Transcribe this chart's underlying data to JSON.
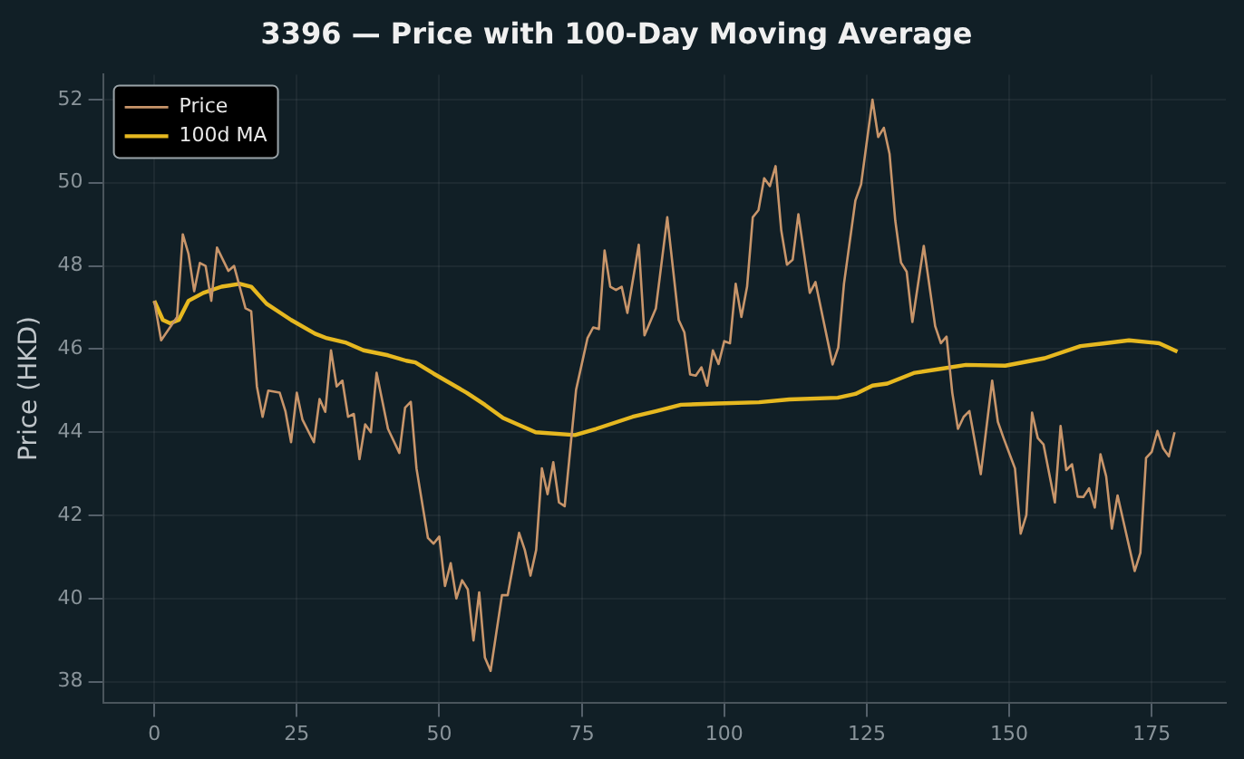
{
  "chart_data": {
    "type": "line",
    "title": "3396 — Price with 100-Day Moving Average",
    "ylabel": "Price (HKD)",
    "xlim": [
      -9,
      188
    ],
    "xticks": [
      0,
      25,
      50,
      75,
      100,
      125,
      150,
      175
    ],
    "ylim": [
      37.5,
      52.6
    ],
    "yticks": [
      38,
      40,
      42,
      44,
      46,
      48,
      50,
      52
    ],
    "grid": true,
    "legend": "top left",
    "line_style": "solid",
    "marker": "none",
    "series": [
      {
        "name": "Price",
        "color": "#c8956a",
        "x": [
          0,
          1.2,
          4,
          5,
          6,
          7,
          8,
          9,
          10,
          11,
          13,
          14,
          16,
          17,
          18,
          19,
          20,
          22,
          23,
          24,
          25,
          26,
          28,
          29,
          30,
          31,
          32,
          33,
          34,
          35,
          36,
          37,
          38,
          39,
          41,
          43,
          44,
          45,
          46,
          48,
          49,
          50,
          51,
          52,
          53,
          54,
          55,
          56,
          57,
          58,
          59,
          61,
          62,
          64,
          65,
          66,
          67,
          68,
          69,
          70,
          71,
          72,
          74,
          76,
          77,
          78,
          79,
          80,
          81,
          82,
          83,
          85,
          86,
          88,
          90,
          92,
          93,
          94,
          95,
          96,
          97,
          98,
          99,
          100,
          101,
          102,
          103,
          104,
          105,
          106,
          107,
          108,
          109,
          110,
          111,
          112,
          113,
          115,
          116,
          119,
          120,
          121,
          123,
          124,
          126,
          127,
          128,
          129,
          130,
          131,
          132,
          133,
          135,
          137,
          138,
          139,
          140,
          141,
          142,
          143,
          145,
          147,
          148,
          149,
          151,
          152,
          153,
          154,
          155,
          156,
          158,
          159,
          160,
          161,
          162,
          163,
          164,
          165,
          166,
          167,
          168,
          169,
          172,
          173,
          174,
          175,
          176,
          177,
          178,
          179
        ],
        "values": [
          47.16,
          46.21,
          46.77,
          48.76,
          48.29,
          47.39,
          48.07,
          48.0,
          47.16,
          48.44,
          47.88,
          48.0,
          46.98,
          46.91,
          45.1,
          44.37,
          45.0,
          44.95,
          44.51,
          43.76,
          44.95,
          44.3,
          43.76,
          44.8,
          44.49,
          45.97,
          45.1,
          45.24,
          44.37,
          44.44,
          43.35,
          44.19,
          44.0,
          45.43,
          44.08,
          43.5,
          44.59,
          44.73,
          43.13,
          41.46,
          41.32,
          41.49,
          40.3,
          40.85,
          40.0,
          40.44,
          40.22,
          38.99,
          40.15,
          38.58,
          38.26,
          40.08,
          40.08,
          41.58,
          41.17,
          40.55,
          41.17,
          43.13,
          42.51,
          43.28,
          42.31,
          42.22,
          45.02,
          46.26,
          46.52,
          46.48,
          48.37,
          47.5,
          47.42,
          47.5,
          46.87,
          48.51,
          46.33,
          46.98,
          49.17,
          46.7,
          46.4,
          45.39,
          45.36,
          45.56,
          45.12,
          45.97,
          45.64,
          46.19,
          46.14,
          47.57,
          46.77,
          47.5,
          49.17,
          49.34,
          50.11,
          49.92,
          50.4,
          48.85,
          48.03,
          48.15,
          49.24,
          47.35,
          47.61,
          45.63,
          46.04,
          47.57,
          49.57,
          49.96,
          52.0,
          51.1,
          51.32,
          50.69,
          49.09,
          48.08,
          47.86,
          46.65,
          48.48,
          46.55,
          46.14,
          46.3,
          44.95,
          44.08,
          44.37,
          44.51,
          42.99,
          45.24,
          44.25,
          43.86,
          43.13,
          41.56,
          42.01,
          44.47,
          43.86,
          43.71,
          42.31,
          44.15,
          43.09,
          43.23,
          42.45,
          42.44,
          42.65,
          42.19,
          43.47,
          42.94,
          41.68,
          42.48,
          40.66,
          41.1,
          43.38,
          43.53,
          44.03,
          43.61,
          43.42,
          44.0
        ]
      },
      {
        "name": "100d MA",
        "color": "#e6b820",
        "x": [
          0,
          1.5,
          2.8,
          4.3,
          6,
          8.6,
          11.8,
          15,
          17,
          19.7,
          24,
          28.2,
          30.3,
          33.5,
          36.7,
          41,
          44.2,
          45.8,
          49,
          54.8,
          58,
          61.2,
          66.9,
          73.8,
          77.5,
          83.9,
          88.1,
          92.4,
          98.7,
          106.1,
          111.4,
          119.9,
          123,
          126,
          128.6,
          133.4,
          138.2,
          142.4,
          149.3,
          156.2,
          162.5,
          166.8,
          171,
          176.3,
          179.5
        ],
        "values": [
          47.16,
          46.7,
          46.62,
          46.7,
          47.16,
          47.35,
          47.5,
          47.57,
          47.5,
          47.09,
          46.7,
          46.37,
          46.26,
          46.16,
          45.97,
          45.85,
          45.72,
          45.68,
          45.41,
          44.95,
          44.66,
          44.34,
          44.0,
          43.93,
          44.08,
          44.37,
          44.51,
          44.66,
          44.69,
          44.72,
          44.79,
          44.83,
          44.92,
          45.12,
          45.17,
          45.43,
          45.53,
          45.62,
          45.6,
          45.78,
          46.07,
          46.14,
          46.21,
          46.14,
          45.94
        ]
      }
    ]
  }
}
